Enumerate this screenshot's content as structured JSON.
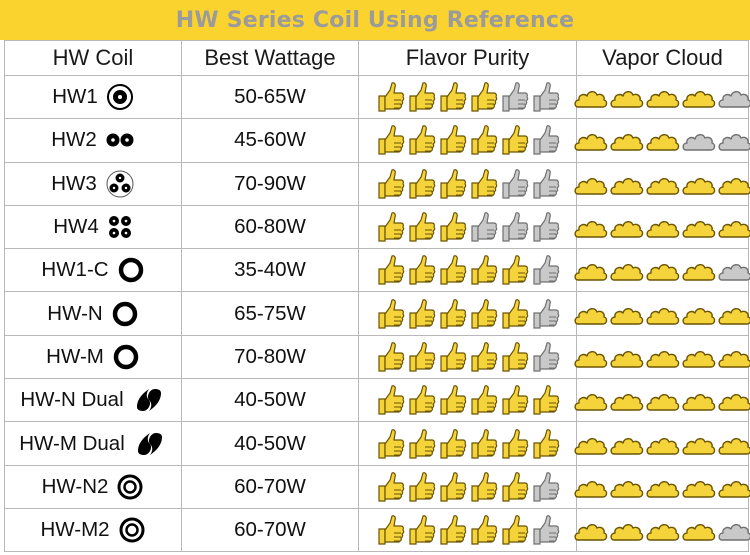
{
  "title": "HW Series Coil Using Reference",
  "headers": {
    "coil": "HW Coil",
    "wattage": "Best Wattage",
    "flavor": "Flavor Purity",
    "vapor": "Vapor Cloud"
  },
  "colors": {
    "banner": "#fbd32e",
    "title_text": "#9b9b9b",
    "icon_filled": "#f5d33a",
    "icon_empty": "#c9c9c9",
    "grid": "#b8b8b8"
  },
  "rows": [
    {
      "coil": "HW1",
      "icon": "single-thick-ring-icon",
      "wattage": "50-65W",
      "flavor": 4,
      "vapor": 4
    },
    {
      "coil": "HW2",
      "icon": "double-hole-icon",
      "wattage": "45-60W",
      "flavor": 5,
      "vapor": 3
    },
    {
      "coil": "HW3",
      "icon": "triple-hole-icon",
      "wattage": "70-90W",
      "flavor": 4,
      "vapor": 5
    },
    {
      "coil": "HW4",
      "icon": "quad-hole-icon",
      "wattage": "60-80W",
      "flavor": 3,
      "vapor": 5
    },
    {
      "coil": "HW1-C",
      "icon": "ring-icon",
      "wattage": "35-40W",
      "flavor": 5,
      "vapor": 4
    },
    {
      "coil": "HW-N",
      "icon": "ring-icon",
      "wattage": "65-75W",
      "flavor": 5,
      "vapor": 5
    },
    {
      "coil": "HW-M",
      "icon": "ring-icon",
      "wattage": "70-80W",
      "flavor": 5,
      "vapor": 5
    },
    {
      "coil": "HW-N Dual",
      "icon": "dual-comma-icon",
      "wattage": "40-50W",
      "flavor": 6,
      "vapor": 5
    },
    {
      "coil": "HW-M Dual",
      "icon": "dual-comma-icon",
      "wattage": "40-50W",
      "flavor": 6,
      "vapor": 5
    },
    {
      "coil": "HW-N2",
      "icon": "concentric-ring-icon",
      "wattage": "60-70W",
      "flavor": 5,
      "vapor": 5
    },
    {
      "coil": "HW-M2",
      "icon": "concentric-ring-icon",
      "wattage": "60-70W",
      "flavor": 5,
      "vapor": 4
    }
  ],
  "max_thumbs": 6,
  "max_clouds": 5
}
